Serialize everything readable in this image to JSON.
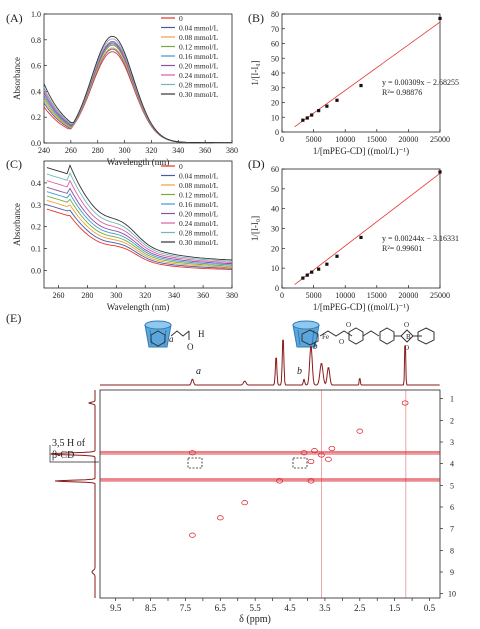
{
  "panel_labels": {
    "a": "(A)",
    "b": "(B)",
    "c": "(C)",
    "d": "(D)",
    "e": "(E)"
  },
  "legend_labels": [
    "0",
    "0.04 mmol/L",
    "0.08 mmol/L",
    "0.12 mmol/L",
    "0.16 mmol/L",
    "0.20 mmol/L",
    "0.24 mmol/L",
    "0.28 mmol/L",
    "0.30 mmol/L"
  ],
  "legend_colors": [
    "#e8322b",
    "#4a5aa8",
    "#e8a43a",
    "#7aab3a",
    "#3e9ad6",
    "#8a4f9e",
    "#e05ea6",
    "#6fb7bd",
    "#333333"
  ],
  "nmr": {
    "label_cd": "3,5 H of",
    "label_cd2": "β-CD",
    "peak_a": "a",
    "peak_b": "b",
    "axis_ticks": [
      "9.5",
      "9.0",
      "8.5",
      "8.0",
      "7.5",
      "7.0",
      "6.5",
      "6.0",
      "5.5",
      "5.0",
      "4.5",
      "4.0",
      "3.5",
      "3.0",
      "2.5",
      "2.0",
      "1.5",
      "1.0",
      "0.5"
    ],
    "axis_ticks_visible": [
      "9.5",
      "8.5",
      "7.5",
      "6.5",
      "5.5",
      "4.5",
      "3.5",
      "2.5",
      "1.5",
      "0.5"
    ],
    "right_ticks": [
      "1",
      "2",
      "3",
      "4",
      "5",
      "6",
      "7",
      "8",
      "9",
      "10"
    ],
    "xlabel": "δ (ppm)"
  },
  "chart_data": [
    {
      "id": "A",
      "type": "line",
      "xlabel": "Wavelength (nm)",
      "ylabel": "Absorbance",
      "xlim": [
        240,
        380
      ],
      "ylim": [
        0,
        1.0
      ],
      "xticks": [
        "240",
        "260",
        "280",
        "300",
        "320",
        "340",
        "360",
        "380"
      ],
      "yticks": [
        "0.0",
        "0.2",
        "0.4",
        "0.6",
        "0.8",
        "1.0"
      ],
      "series": [
        {
          "name": "0",
          "peak": 0.7,
          "base": 0.26
        },
        {
          "name": "0.04 mmol/L",
          "peak": 0.72,
          "base": 0.29
        },
        {
          "name": "0.08 mmol/L",
          "peak": 0.73,
          "base": 0.31
        },
        {
          "name": "0.12 mmol/L",
          "peak": 0.75,
          "base": 0.33
        },
        {
          "name": "0.16 mmol/L",
          "peak": 0.76,
          "base": 0.35
        },
        {
          "name": "0.20 mmol/L",
          "peak": 0.77,
          "base": 0.37
        },
        {
          "name": "0.24 mmol/L",
          "peak": 0.78,
          "base": 0.39
        },
        {
          "name": "0.28 mmol/L",
          "peak": 0.8,
          "base": 0.41
        },
        {
          "name": "0.30 mmol/L",
          "peak": 0.82,
          "base": 0.44
        }
      ]
    },
    {
      "id": "B",
      "type": "scatter",
      "xlabel": "1/[mPEG-CD] ((mol/L)⁻¹)",
      "ylabel": "1/[I-I₀]",
      "xlim": [
        0,
        25000
      ],
      "ylim": [
        0,
        80
      ],
      "xticks": [
        "0",
        "5000",
        "10000",
        "15000",
        "20000",
        "25000"
      ],
      "yticks": [
        "0",
        "10",
        "20",
        "30",
        "40",
        "50",
        "60",
        "70",
        "80"
      ],
      "x": [
        3300,
        4000,
        4700,
        5800,
        7100,
        8700,
        12500,
        25000
      ],
      "y": [
        8.0,
        9.5,
        11.5,
        14.5,
        17.5,
        21.5,
        31.5,
        77.0
      ],
      "fit": {
        "slope": 0.00309,
        "intercept": -2.68255
      },
      "equation": "y = 0.00309x − 2.68255",
      "r2": "R²= 0.98876"
    },
    {
      "id": "C",
      "type": "line",
      "xlabel": "Wavelength (nm)",
      "ylabel": "Absorbance",
      "xlim": [
        250,
        380
      ],
      "ylim": [
        -0.08,
        0.5
      ],
      "xticks": [
        "260",
        "280",
        "300",
        "320",
        "340",
        "360",
        "380"
      ],
      "yticks": [
        "0.0",
        "0.1",
        "0.2",
        "0.3",
        "0.4"
      ],
      "series": [
        {
          "name": "0",
          "top": 0.28
        },
        {
          "name": "0.04 mmol/L",
          "top": 0.3
        },
        {
          "name": "0.08 mmol/L",
          "top": 0.32
        },
        {
          "name": "0.12 mmol/L",
          "top": 0.34
        },
        {
          "name": "0.16 mmol/L",
          "top": 0.36
        },
        {
          "name": "0.20 mmol/L",
          "top": 0.38
        },
        {
          "name": "0.24 mmol/L",
          "top": 0.41
        },
        {
          "name": "0.28 mmol/L",
          "top": 0.44
        },
        {
          "name": "0.30 mmol/L",
          "top": 0.47
        }
      ]
    },
    {
      "id": "D",
      "type": "scatter",
      "xlabel": "1/[mPEG-CD] ((mol/L)⁻¹)",
      "ylabel": "1/[I-I₀]",
      "xlim": [
        0,
        25000
      ],
      "ylim": [
        0,
        60
      ],
      "xticks": [
        "0",
        "5000",
        "10000",
        "15000",
        "20000",
        "25000"
      ],
      "yticks": [
        "0",
        "10",
        "20",
        "30",
        "40",
        "50",
        "60"
      ],
      "x": [
        3300,
        4000,
        4700,
        5800,
        7100,
        8700,
        12500,
        25000
      ],
      "y": [
        5.0,
        6.5,
        8.0,
        9.5,
        12.0,
        16.0,
        25.5,
        58.5
      ],
      "fit": {
        "slope": 0.00244,
        "intercept": -3.16331
      },
      "equation": "y = 0.00244x − 3.16331",
      "r2": "R²= 0.99601"
    }
  ]
}
